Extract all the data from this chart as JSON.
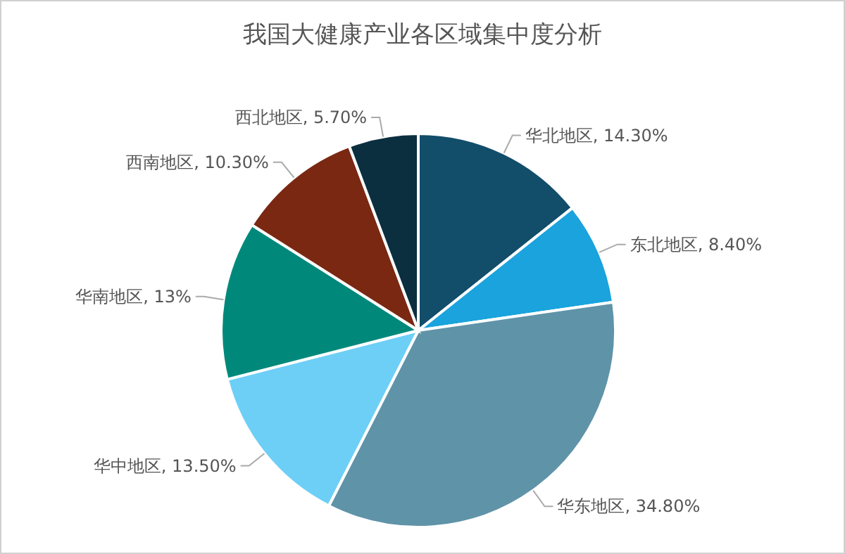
{
  "chart_data": {
    "type": "pie",
    "title": "我国大健康产业各区域集中度分析",
    "categories": [
      "华北地区",
      "东北地区",
      "华东地区",
      "华中地区",
      "华南地区",
      "西南地区",
      "西北地区"
    ],
    "values": [
      14.3,
      8.4,
      34.8,
      13.5,
      13,
      10.3,
      5.7
    ],
    "value_labels": [
      "14.30%",
      "8.40%",
      "34.80%",
      "13.50%",
      "13%",
      "10.30%",
      "5.70%"
    ],
    "colors": [
      "#124d6a",
      "#1aa3dc",
      "#5f93a8",
      "#6dcff6",
      "#00897b",
      "#7a2812",
      "#0b2f3f"
    ]
  }
}
